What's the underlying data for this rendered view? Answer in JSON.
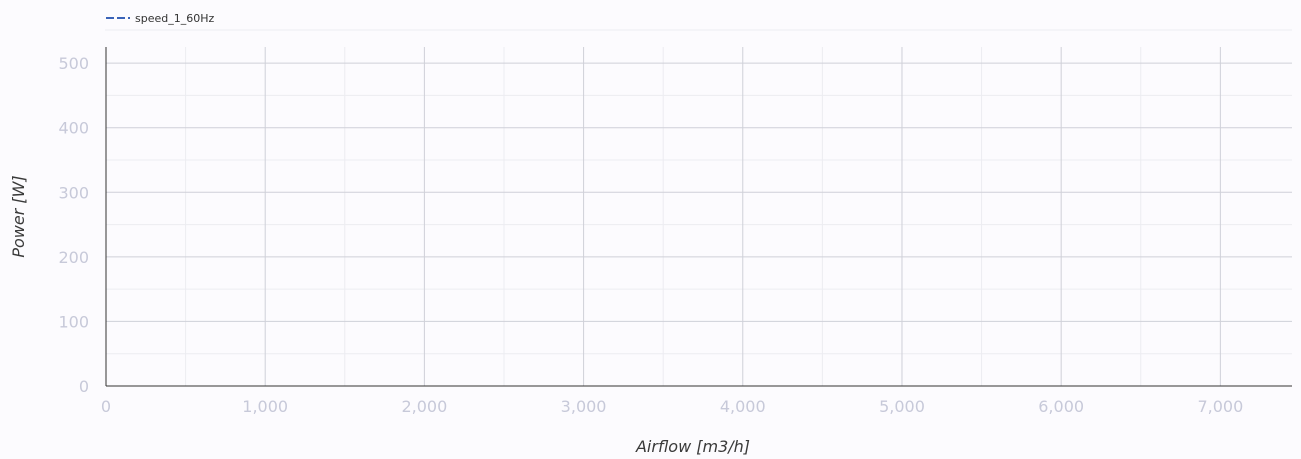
{
  "chart_data": {
    "type": "line",
    "title": "",
    "xlabel": "Airflow [m3/h]",
    "ylabel": "Power [W]",
    "xlim": [
      0,
      7450
    ],
    "ylim": [
      0,
      525
    ],
    "x_ticks": [
      0,
      1000,
      2000,
      3000,
      4000,
      5000,
      6000,
      7000
    ],
    "x_tick_labels": [
      "0",
      "1,000",
      "2,000",
      "3,000",
      "4,000",
      "5,000",
      "6,000",
      "7,000"
    ],
    "x_minor_ticks": [
      500,
      1500,
      2500,
      3500,
      4500,
      5500,
      6500
    ],
    "y_ticks": [
      0,
      100,
      200,
      300,
      400,
      500
    ],
    "y_tick_labels": [
      "0",
      "100",
      "200",
      "300",
      "400",
      "500"
    ],
    "y_minor_ticks": [
      50,
      150,
      250,
      350,
      450
    ],
    "grid": true,
    "legend_position": "top-left",
    "series": [
      {
        "name": "speed_1_60Hz",
        "color": "#3a63b8",
        "dash": "dashed",
        "x": [],
        "y": []
      }
    ]
  }
}
